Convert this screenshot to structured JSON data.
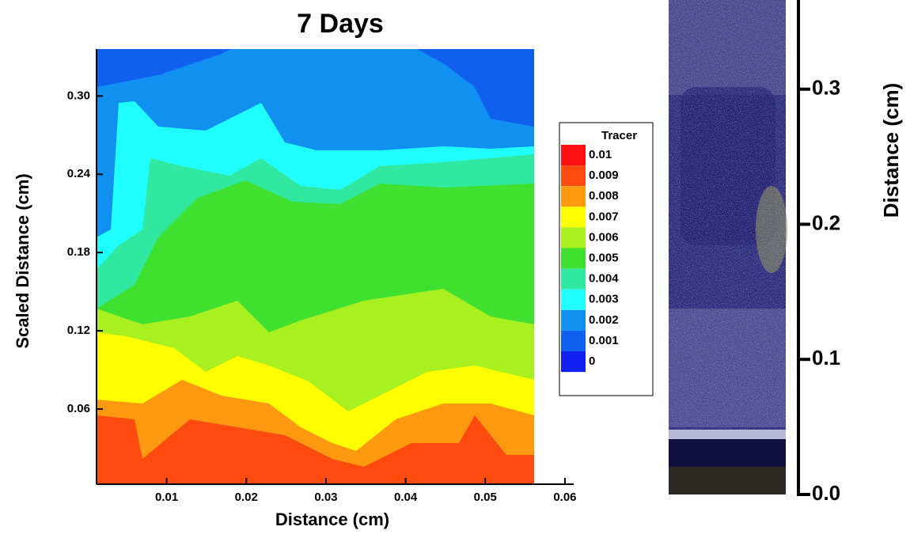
{
  "chart_data": {
    "type": "contour",
    "title": "7 Days",
    "x_label": "Distance (cm)",
    "y_label": "Scaled Distance (cm)",
    "xlim": [
      0.0012,
      0.0611
    ],
    "xticks": [
      0.01,
      0.02,
      0.03,
      0.04,
      0.05,
      0.06
    ],
    "ylim": [
      0.0024,
      0.336
    ],
    "yticks": [
      0.06,
      0.12,
      0.18,
      0.24,
      {
        "value": 0.3,
        "label": "0.30"
      }
    ],
    "legend": {
      "title": "Tracer",
      "levels": [
        0.01,
        0.009,
        0.008,
        0.007,
        0.006,
        0.005,
        0.004,
        0.003,
        0.002,
        0.001,
        0
      ],
      "colors": [
        "#ff1010",
        "#ff4a10",
        "#ff9a10",
        "#ffff00",
        "#a8f020",
        "#40e030",
        "#30e8a0",
        "#20ffff",
        "#1090f0",
        "#1060f0",
        "#1020f0"
      ]
    },
    "secondary_axis": {
      "label": "Distance (cm)",
      "ylim": [
        0,
        0.366
      ],
      "yticks": [
        {
          "value": 0,
          "label": "0.0"
        },
        0.1,
        0.2,
        0.3
      ]
    }
  }
}
